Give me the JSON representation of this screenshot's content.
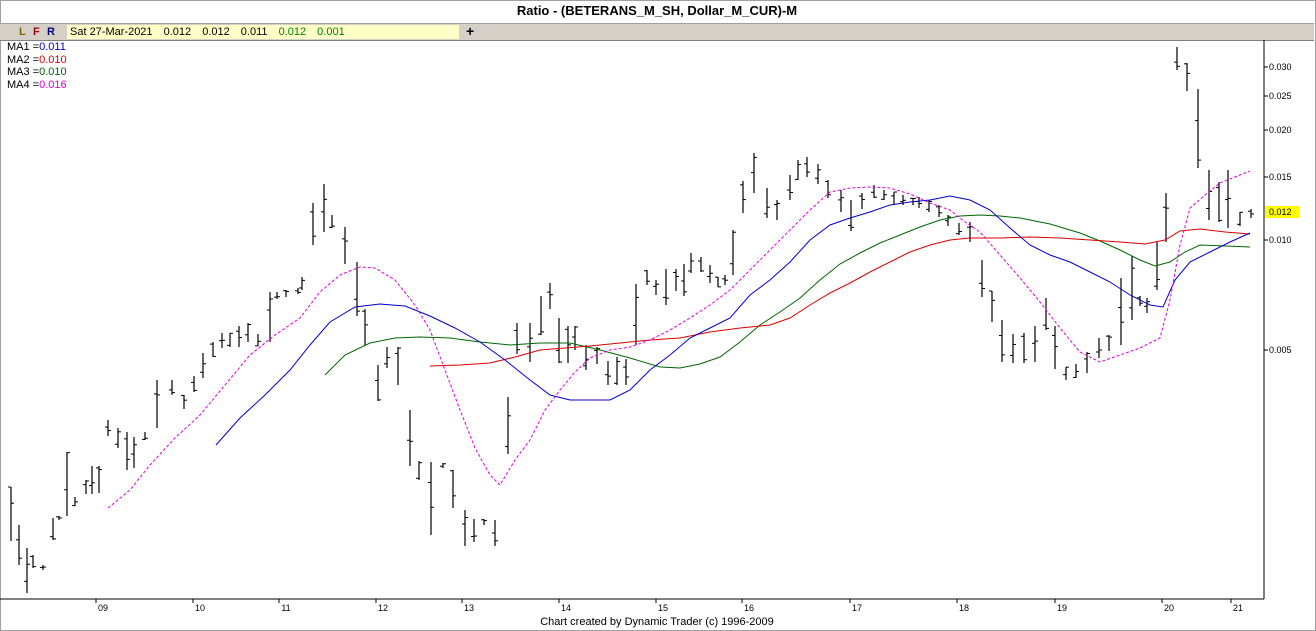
{
  "title": "Ratio - (BETERANS_M_SH, Dollar_M_CUR)-M",
  "toolbar": {
    "buttons": [
      {
        "label": "L",
        "color": "#806000"
      },
      {
        "label": "F",
        "color": "#a00000"
      },
      {
        "label": "R",
        "color": "#000080"
      }
    ],
    "date": "Sat 27-Mar-2021",
    "values": [
      "0.012",
      "0.012",
      "0.011",
      "0.012",
      "0.001"
    ],
    "value_colors": [
      "#000000",
      "#000000",
      "#000000",
      "#008000",
      "#008000"
    ],
    "plus_label": "+"
  },
  "legend": [
    {
      "name": "MA1 =",
      "value": "0.011",
      "color": "#0000cc"
    },
    {
      "name": "MA2 =",
      "value": "0.010",
      "color": "#dd0000"
    },
    {
      "name": "MA3 =",
      "value": "0.010",
      "color": "#006600"
    },
    {
      "name": "MA4 =",
      "value": "0.016",
      "color": "#dd00dd"
    }
  ],
  "footer": "Chart created by Dynamic Trader  (c) 1996-2009",
  "chart_data": {
    "type": "ohlc bar",
    "scale": "log",
    "y_ticks": [
      "0.030",
      "0.025",
      "0.020",
      "0.015",
      "0.010",
      "0.005"
    ],
    "x_ticks": [
      "09",
      "10",
      "11",
      "12",
      "13",
      "14",
      "15",
      "16",
      "17",
      "18",
      "19",
      "20",
      "21"
    ],
    "last_price_label": "0.012",
    "last_price_color": "#ffff00",
    "ma_colors": {
      "MA1": "#0000cc",
      "MA2": "#dd0000",
      "MA3": "#006600",
      "MA4": "#dd00dd"
    }
  }
}
